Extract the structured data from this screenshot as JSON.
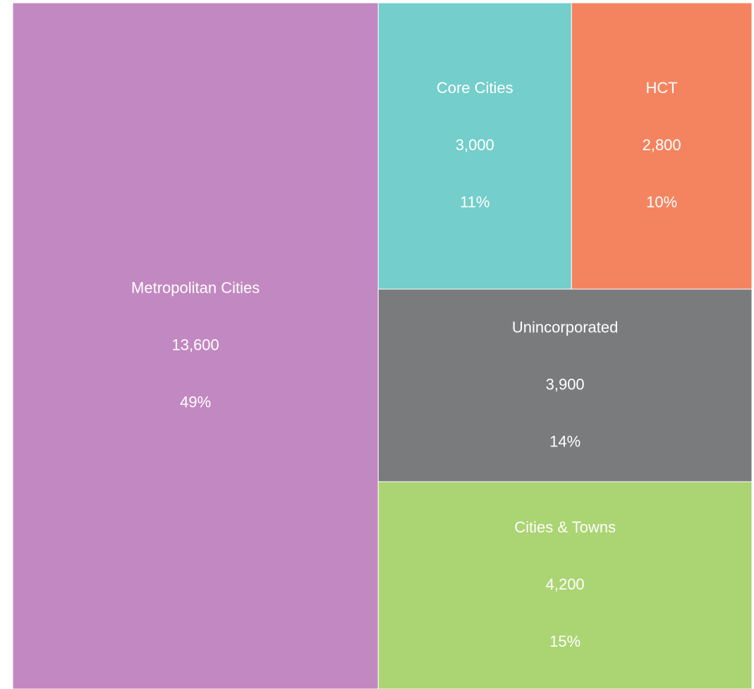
{
  "chart_data": {
    "type": "treemap",
    "categories": [
      "Metropolitan Cities",
      "Core Cities",
      "HCT",
      "Unincorporated",
      "Cities & Towns"
    ],
    "values": [
      13600,
      3000,
      2800,
      3900,
      4200
    ],
    "value_labels": [
      "13,600",
      "3,000",
      "2,800",
      "3,900",
      "4,200"
    ],
    "share_labels": [
      "49%",
      "11%",
      "10%",
      "14%",
      "15%"
    ],
    "colors": [
      "#c288c1",
      "#74cecb",
      "#f4845f",
      "#7a7b7c",
      "#abd473"
    ]
  }
}
